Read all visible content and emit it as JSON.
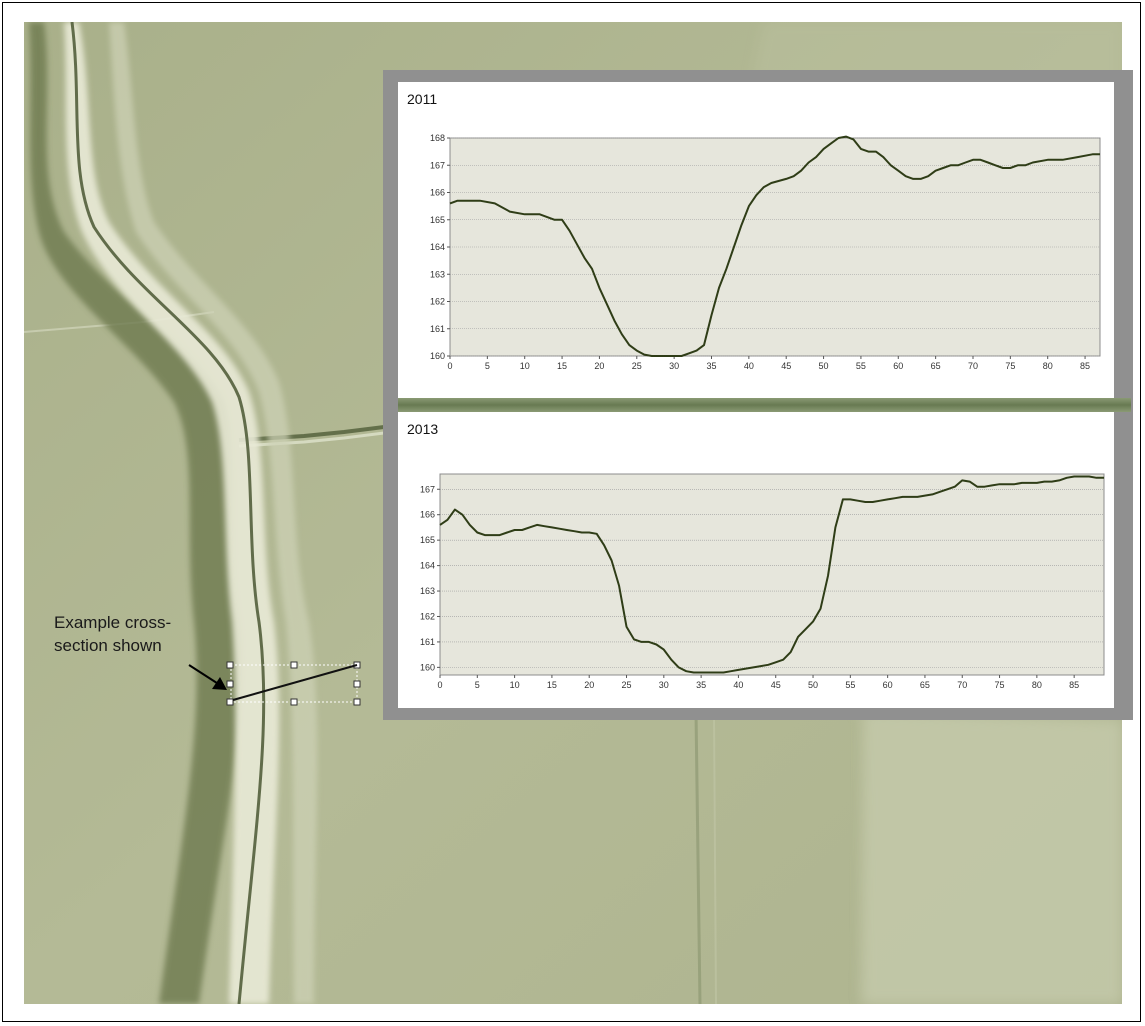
{
  "figure": {
    "annotation_lines": [
      "Example cross-",
      "section shown"
    ]
  },
  "colors": {
    "terrain_base": "#b2b894",
    "terrain_highlight": "#e8e8d6",
    "terrain_shadow": "#5e6b44",
    "panel_border": "#909090",
    "separator": "#6f8258",
    "plot_background": "#e6e6dc",
    "profile_line": "#2f3d17",
    "gridline": "#9b9b9b"
  },
  "chart_data": [
    {
      "type": "line",
      "title": "2011",
      "xlabel": "",
      "ylabel": "",
      "xlim": [
        0,
        87
      ],
      "ylim": [
        160,
        168
      ],
      "grid": true,
      "xticks": [
        0,
        5,
        10,
        15,
        20,
        25,
        30,
        35,
        40,
        45,
        50,
        55,
        60,
        65,
        70,
        75,
        80,
        85
      ],
      "yticks": [
        160,
        161,
        162,
        163,
        164,
        165,
        166,
        167,
        168
      ],
      "series": [
        {
          "x": [
            0,
            1,
            2,
            4,
            6,
            8,
            10,
            12,
            14,
            15,
            16,
            17,
            18,
            19,
            20,
            21,
            22,
            23,
            24,
            25,
            26,
            27,
            28,
            30,
            31,
            32,
            33,
            34,
            35,
            36,
            37,
            38,
            39,
            40,
            41,
            42,
            43,
            45,
            46,
            47,
            48,
            49,
            50,
            51,
            52,
            53,
            54,
            55,
            56,
            57,
            58,
            59,
            60,
            61,
            62,
            63,
            64,
            65,
            66,
            67,
            68,
            69,
            70,
            71,
            72,
            73,
            74,
            75,
            76,
            77,
            78,
            80,
            82,
            84,
            86,
            87
          ],
          "values": [
            165.6,
            165.7,
            165.7,
            165.7,
            165.6,
            165.3,
            165.2,
            165.2,
            165.0,
            165.0,
            164.6,
            164.1,
            163.6,
            163.2,
            162.5,
            161.9,
            161.3,
            160.8,
            160.4,
            160.2,
            160.05,
            160.0,
            160.0,
            160.0,
            160.0,
            160.1,
            160.2,
            160.4,
            161.5,
            162.5,
            163.2,
            164.0,
            164.8,
            165.5,
            165.9,
            166.2,
            166.35,
            166.5,
            166.6,
            166.8,
            167.1,
            167.3,
            167.6,
            167.8,
            168.0,
            168.05,
            167.95,
            167.6,
            167.5,
            167.5,
            167.3,
            167.0,
            166.8,
            166.6,
            166.5,
            166.5,
            166.6,
            166.8,
            166.9,
            167.0,
            167.0,
            167.1,
            167.2,
            167.2,
            167.1,
            167.0,
            166.9,
            166.9,
            167.0,
            167.0,
            167.1,
            167.2,
            167.2,
            167.3,
            167.4,
            167.4
          ]
        }
      ]
    },
    {
      "type": "line",
      "title": "2013",
      "xlabel": "",
      "ylabel": "",
      "xlim": [
        0,
        89
      ],
      "ylim": [
        159.7,
        167.6
      ],
      "grid": true,
      "xticks": [
        0,
        5,
        10,
        15,
        20,
        25,
        30,
        35,
        40,
        45,
        50,
        55,
        60,
        65,
        70,
        75,
        80,
        85
      ],
      "yticks": [
        160,
        161,
        162,
        163,
        164,
        165,
        166,
        167
      ],
      "series": [
        {
          "x": [
            0,
            1,
            2,
            3,
            4,
            5,
            6,
            7,
            8,
            9,
            10,
            11,
            12,
            13,
            14,
            15,
            16,
            17,
            18,
            19,
            20,
            21,
            22,
            23,
            24,
            25,
            26,
            27,
            28,
            29,
            30,
            31,
            32,
            33,
            34,
            35,
            36,
            37,
            38,
            39,
            40,
            41,
            42,
            43,
            44,
            45,
            46,
            47,
            48,
            49,
            50,
            51,
            52,
            53,
            54,
            55,
            56,
            57,
            58,
            59,
            60,
            61,
            62,
            63,
            64,
            65,
            66,
            67,
            68,
            69,
            70,
            71,
            72,
            73,
            74,
            75,
            76,
            77,
            78,
            79,
            80,
            81,
            82,
            83,
            84,
            85,
            86,
            87,
            88,
            89
          ],
          "values": [
            165.6,
            165.8,
            166.2,
            166.0,
            165.6,
            165.3,
            165.2,
            165.2,
            165.2,
            165.3,
            165.4,
            165.4,
            165.5,
            165.6,
            165.55,
            165.5,
            165.45,
            165.4,
            165.35,
            165.3,
            165.3,
            165.25,
            164.8,
            164.2,
            163.2,
            161.6,
            161.1,
            161.0,
            161.0,
            160.9,
            160.7,
            160.3,
            160.0,
            159.85,
            159.8,
            159.8,
            159.8,
            159.8,
            159.8,
            159.85,
            159.9,
            159.95,
            160.0,
            160.05,
            160.1,
            160.2,
            160.3,
            160.6,
            161.2,
            161.5,
            161.8,
            162.3,
            163.6,
            165.5,
            166.6,
            166.6,
            166.55,
            166.5,
            166.5,
            166.55,
            166.6,
            166.65,
            166.7,
            166.7,
            166.7,
            166.75,
            166.8,
            166.9,
            167.0,
            167.1,
            167.35,
            167.3,
            167.1,
            167.1,
            167.15,
            167.2,
            167.2,
            167.2,
            167.25,
            167.25,
            167.25,
            167.3,
            167.3,
            167.35,
            167.45,
            167.5,
            167.5,
            167.5,
            167.45,
            167.45
          ]
        }
      ]
    }
  ]
}
